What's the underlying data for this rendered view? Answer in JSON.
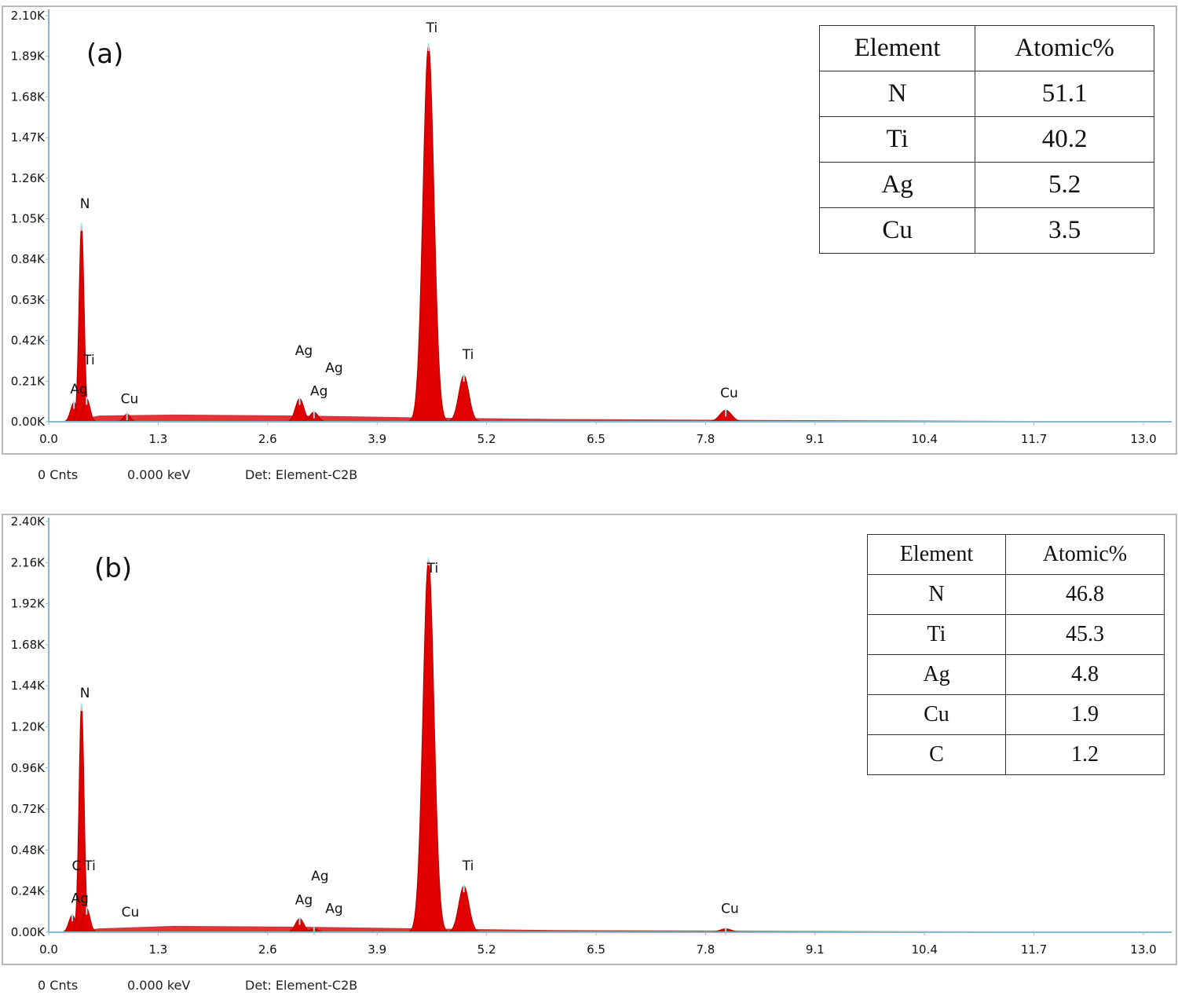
{
  "chart_data": [
    {
      "type": "area",
      "panel": "(a)",
      "xlim": [
        0,
        13
      ],
      "ylim": [
        0,
        2.1
      ],
      "x_ticks": [
        "0.0",
        "1.3",
        "2.6",
        "3.9",
        "5.2",
        "6.5",
        "7.8",
        "9.1",
        "10.4",
        "11.7",
        "13.0"
      ],
      "y_ticks": [
        "0.00K",
        "0.21K",
        "0.42K",
        "0.63K",
        "0.84K",
        "1.05K",
        "1.26K",
        "1.47K",
        "1.68K",
        "1.89K",
        "2.10K"
      ],
      "color": "#e00000",
      "axis_color": "#8ab8cc",
      "peaks": [
        {
          "element": "Ag",
          "energy": 0.3,
          "counts": 0.1,
          "sigma": 0.04
        },
        {
          "element": "N",
          "energy": 0.39,
          "counts": 1.02,
          "sigma": 0.03
        },
        {
          "element": "Ti",
          "energy": 0.45,
          "counts": 0.12,
          "sigma": 0.04
        },
        {
          "element": "Cu",
          "energy": 0.93,
          "counts": 0.04,
          "sigma": 0.04
        },
        {
          "element": "Ag",
          "energy": 2.98,
          "counts": 0.12,
          "sigma": 0.05
        },
        {
          "element": "Ag",
          "energy": 3.15,
          "counts": 0.05,
          "sigma": 0.05
        },
        {
          "element": "Ti",
          "energy": 4.51,
          "counts": 1.95,
          "sigma": 0.065
        },
        {
          "element": "Ti",
          "energy": 4.93,
          "counts": 0.24,
          "sigma": 0.06
        },
        {
          "element": "Cu",
          "energy": 8.04,
          "counts": 0.06,
          "sigma": 0.07
        }
      ],
      "background": [
        [
          0.25,
          0.0
        ],
        [
          0.6,
          0.03
        ],
        [
          1.5,
          0.035
        ],
        [
          3.0,
          0.03
        ],
        [
          4.4,
          0.02
        ],
        [
          6.0,
          0.012
        ],
        [
          9.0,
          0.006
        ],
        [
          13.0,
          0.0
        ]
      ],
      "peak_labels": [
        {
          "text": "N",
          "x": 0.43,
          "y": 1.13
        },
        {
          "text": "Ti",
          "x": 4.55,
          "y": 2.04
        },
        {
          "text": "Ti",
          "x": 0.48,
          "y": 0.32
        },
        {
          "text": "Ag",
          "x": 0.36,
          "y": 0.17
        },
        {
          "text": "Cu",
          "x": 0.96,
          "y": 0.12
        },
        {
          "text": "Ag",
          "x": 3.03,
          "y": 0.37
        },
        {
          "text": "Ag",
          "x": 3.39,
          "y": 0.28
        },
        {
          "text": "Ag",
          "x": 3.21,
          "y": 0.16
        },
        {
          "text": "Ti",
          "x": 4.98,
          "y": 0.35
        },
        {
          "text": "Cu",
          "x": 8.08,
          "y": 0.15
        }
      ],
      "table": {
        "headers": [
          "Element",
          "Atomic%"
        ],
        "rows": [
          [
            "N",
            "51.1"
          ],
          [
            "Ti",
            "40.2"
          ],
          [
            "Ag",
            "5.2"
          ],
          [
            "Cu",
            "3.5"
          ]
        ]
      },
      "footer": {
        "counts": "0 Cnts",
        "energy": "0.000 keV",
        "detector": "Det: Element-C2B"
      }
    },
    {
      "type": "area",
      "panel": "(b)",
      "xlim": [
        0,
        13
      ],
      "ylim": [
        0,
        2.4
      ],
      "x_ticks": [
        "0.0",
        "1.3",
        "2.6",
        "3.9",
        "5.2",
        "6.5",
        "7.8",
        "9.1",
        "10.4",
        "11.7",
        "13.0"
      ],
      "y_ticks": [
        "0.00K",
        "0.24K",
        "0.48K",
        "0.72K",
        "0.96K",
        "1.20K",
        "1.44K",
        "1.68K",
        "1.92K",
        "2.16K",
        "2.40K"
      ],
      "color": "#e00000",
      "axis_color": "#8ab8cc",
      "peaks": [
        {
          "element": "C",
          "energy": 0.28,
          "counts": 0.1,
          "sigma": 0.04
        },
        {
          "element": "N",
          "energy": 0.39,
          "counts": 1.33,
          "sigma": 0.03
        },
        {
          "element": "Ti",
          "energy": 0.45,
          "counts": 0.14,
          "sigma": 0.04
        },
        {
          "element": "Ag",
          "energy": 2.98,
          "counts": 0.08,
          "sigma": 0.05
        },
        {
          "element": "Ag",
          "energy": 3.15,
          "counts": 0.02,
          "sigma": 0.05
        },
        {
          "element": "Ti",
          "energy": 4.51,
          "counts": 2.18,
          "sigma": 0.065
        },
        {
          "element": "Ti",
          "energy": 4.93,
          "counts": 0.27,
          "sigma": 0.06
        },
        {
          "element": "Cu",
          "energy": 8.04,
          "counts": 0.02,
          "sigma": 0.07
        }
      ],
      "background": [
        [
          0.25,
          0.0
        ],
        [
          0.6,
          0.02
        ],
        [
          1.5,
          0.035
        ],
        [
          3.0,
          0.03
        ],
        [
          4.4,
          0.02
        ],
        [
          6.0,
          0.01
        ],
        [
          9.0,
          0.005
        ],
        [
          13.0,
          0.0
        ]
      ],
      "peak_labels": [
        {
          "text": "N",
          "x": 0.43,
          "y": 1.4
        },
        {
          "text": "Ti",
          "x": 4.56,
          "y": 2.13
        },
        {
          "text": "C",
          "x": 0.33,
          "y": 0.39
        },
        {
          "text": "Ti",
          "x": 0.49,
          "y": 0.39
        },
        {
          "text": "Ag",
          "x": 0.37,
          "y": 0.2
        },
        {
          "text": "Cu",
          "x": 0.97,
          "y": 0.12
        },
        {
          "text": "Ag",
          "x": 3.22,
          "y": 0.33
        },
        {
          "text": "Ag",
          "x": 3.03,
          "y": 0.19
        },
        {
          "text": "Ag",
          "x": 3.39,
          "y": 0.14
        },
        {
          "text": "Ti",
          "x": 4.98,
          "y": 0.39
        },
        {
          "text": "Cu",
          "x": 8.09,
          "y": 0.14
        }
      ],
      "table": {
        "headers": [
          "Element",
          "Atomic%"
        ],
        "rows": [
          [
            "N",
            "46.8"
          ],
          [
            "Ti",
            "45.3"
          ],
          [
            "Ag",
            "4.8"
          ],
          [
            "Cu",
            "1.9"
          ],
          [
            "C",
            "1.2"
          ]
        ]
      },
      "footer": {
        "counts": "0 Cnts",
        "energy": "0.000 keV",
        "detector": "Det: Element-C2B"
      }
    }
  ]
}
